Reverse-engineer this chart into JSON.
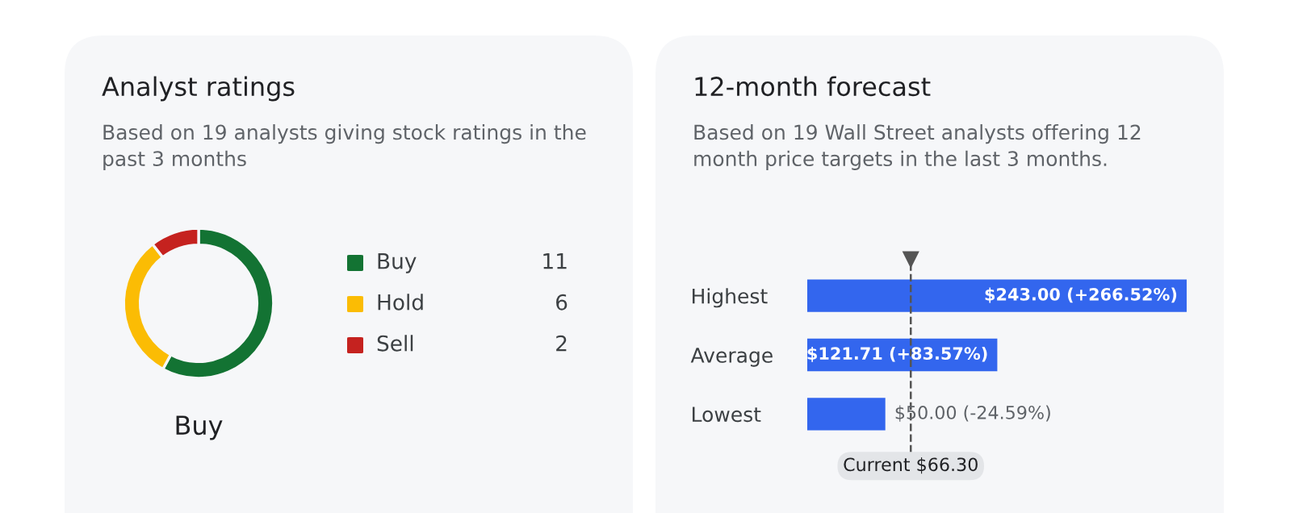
{
  "chart_data": [
    {
      "type": "donut",
      "title": "Analyst ratings",
      "subtitle": "Based on 19 analysts giving stock ratings in the past 3 months",
      "categories": [
        "Buy",
        "Hold",
        "Sell"
      ],
      "values": [
        11,
        6,
        2
      ],
      "colors": [
        "#137333",
        "#fbbc04",
        "#c5221f"
      ],
      "legend": "right",
      "data_labels": true,
      "annotations": [
        "Buy"
      ]
    },
    {
      "type": "bar",
      "orientation": "horizontal",
      "title": "12-month forecast",
      "subtitle": "Based on 19 Wall Street analysts offering 12 month price targets in the last 3 months.",
      "categories": [
        "Highest",
        "Average",
        "Lowest"
      ],
      "values": [
        243.0,
        121.71,
        50.0
      ],
      "color": "#3366ee",
      "value_labels": [
        "$243.00 (+266.52%)",
        "$121.71 (+83.57%)",
        "$50.00 (-24.59%)"
      ],
      "ref_lines": [
        {
          "axis": "x",
          "value": 66.3,
          "label": "Current $66.30",
          "line_style": "dashed",
          "color": "#555555"
        }
      ]
    }
  ]
}
